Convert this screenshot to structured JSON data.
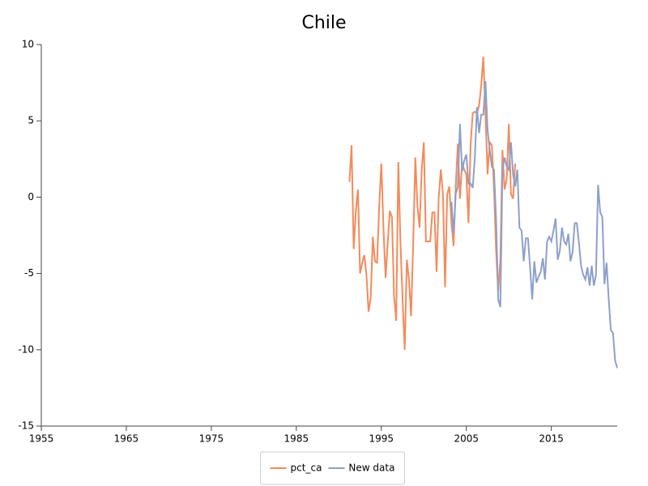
{
  "chart_data": {
    "type": "line",
    "title": "Chile",
    "series": [
      {
        "name": "pct_ca",
        "color": "#f58a5b",
        "x": [
          1991.25,
          1991.5,
          1991.75,
          1992,
          1992.25,
          1992.5,
          1992.75,
          1993,
          1993.25,
          1993.5,
          1993.75,
          1994,
          1994.25,
          1994.5,
          1994.75,
          1995,
          1995.25,
          1995.5,
          1995.75,
          1996,
          1996.25,
          1996.5,
          1996.75,
          1997,
          1997.25,
          1997.5,
          1997.75,
          1998,
          1998.25,
          1998.5,
          1998.75,
          1999,
          1999.25,
          1999.5,
          1999.75,
          2000,
          2000.25,
          2000.5,
          2000.75,
          2001,
          2001.25,
          2001.5,
          2001.75,
          2002,
          2002.25,
          2002.5,
          2002.75,
          2003,
          2003.25,
          2003.5,
          2003.75,
          2004,
          2004.25,
          2004.5,
          2004.75,
          2005,
          2005.25,
          2005.5,
          2005.75,
          2006,
          2006.25,
          2006.5,
          2006.75,
          2007,
          2007.25,
          2007.5,
          2007.75,
          2008,
          2008.25,
          2008.5,
          2008.75,
          2009,
          2009.25,
          2009.5,
          2009.75,
          2010,
          2010.25,
          2010.5,
          2010.75
        ],
        "values": [
          1.0,
          3.4,
          -3.4,
          -0.9,
          0.5,
          -5.0,
          -4.3,
          -3.8,
          -5.1,
          -7.5,
          -6.6,
          -2.6,
          -4.2,
          -4.3,
          -0.6,
          2.2,
          -2.0,
          -5.3,
          -3.0,
          -0.9,
          -1.3,
          -6.5,
          -8.1,
          2.3,
          -3.0,
          -6.7,
          -10.0,
          -4.1,
          -5.4,
          -7.8,
          -3.0,
          2.6,
          -0.6,
          -2.0,
          1.8,
          3.6,
          -2.9,
          -2.9,
          -2.9,
          -1.0,
          -1.0,
          -4.9,
          0.0,
          1.8,
          0.2,
          -5.9,
          0.2,
          0.7,
          -1.7,
          -3.2,
          0.7,
          3.5,
          -0.1,
          2.3,
          1.8,
          1.5,
          -1.7,
          3.4,
          5.5,
          5.6,
          5.5,
          6.0,
          7.3,
          9.2,
          5.5,
          1.5,
          3.6,
          3.4,
          0.7,
          -3.5,
          -6.2,
          -4.1,
          3.1,
          0.5,
          1.2,
          4.8,
          0.2,
          -0.1,
          2.2
        ]
      },
      {
        "name": "New data",
        "color": "#8da0cb",
        "x": [
          2003.25,
          2003.5,
          2003.75,
          2004,
          2004.25,
          2004.5,
          2004.75,
          2005,
          2005.25,
          2005.5,
          2005.75,
          2006,
          2006.25,
          2006.5,
          2006.75,
          2007,
          2007.25,
          2007.5,
          2007.75,
          2008,
          2008.25,
          2008.5,
          2008.75,
          2009,
          2009.25,
          2009.5,
          2009.75,
          2010,
          2010.25,
          2010.5,
          2010.75,
          2011,
          2011.25,
          2011.5,
          2011.75,
          2012,
          2012.25,
          2012.5,
          2012.75,
          2013,
          2013.25,
          2013.5,
          2013.75,
          2014,
          2014.25,
          2014.5,
          2014.75,
          2015,
          2015.25,
          2015.5,
          2015.75,
          2016,
          2016.25,
          2016.5,
          2016.75,
          2017,
          2017.25,
          2017.5,
          2017.75,
          2018,
          2018.25,
          2018.5,
          2018.75,
          2019,
          2019.25,
          2019.5,
          2019.75,
          2020,
          2020.25,
          2020.5,
          2020.75,
          2021,
          2021.25,
          2021.5,
          2021.75,
          2022,
          2022.25,
          2022.5,
          2022.75
        ],
        "values": [
          -0.3,
          -2.4,
          0.2,
          0.7,
          4.8,
          1.7,
          2.4,
          2.8,
          0.9,
          0.9,
          0.6,
          2.6,
          5.9,
          4.2,
          5.4,
          5.4,
          7.6,
          4.4,
          3.1,
          2.0,
          1.8,
          -1.4,
          -6.7,
          -7.2,
          1.8,
          2.6,
          2.0,
          1.8,
          3.6,
          1.5,
          0.7,
          1.8,
          -2.0,
          -2.2,
          -4.2,
          -2.7,
          -2.7,
          -4.6,
          -6.7,
          -4.2,
          -5.6,
          -5.2,
          -4.9,
          -4.0,
          -5.4,
          -2.9,
          -2.6,
          -2.9,
          -2.2,
          -1.4,
          -4.1,
          -3.5,
          -2.0,
          -2.9,
          -3.1,
          -2.4,
          -4.2,
          -3.6,
          -1.7,
          -1.7,
          -3.0,
          -4.5,
          -5.1,
          -5.4,
          -4.6,
          -5.8,
          -4.5,
          -5.8,
          -5.1,
          0.8,
          -1.0,
          -1.3,
          -5.7,
          -4.3,
          -6.7,
          -8.7,
          -8.9,
          -10.7,
          -11.2
        ]
      }
    ],
    "xlim": [
      1955,
      2022.75
    ],
    "xticks": [
      1955,
      1965,
      1975,
      1985,
      1995,
      2005,
      2015
    ],
    "ylim": [
      -15,
      10
    ],
    "yticks": [
      -15,
      -10,
      -5,
      0,
      5,
      10
    ],
    "grid": false,
    "legend": "bottom"
  }
}
